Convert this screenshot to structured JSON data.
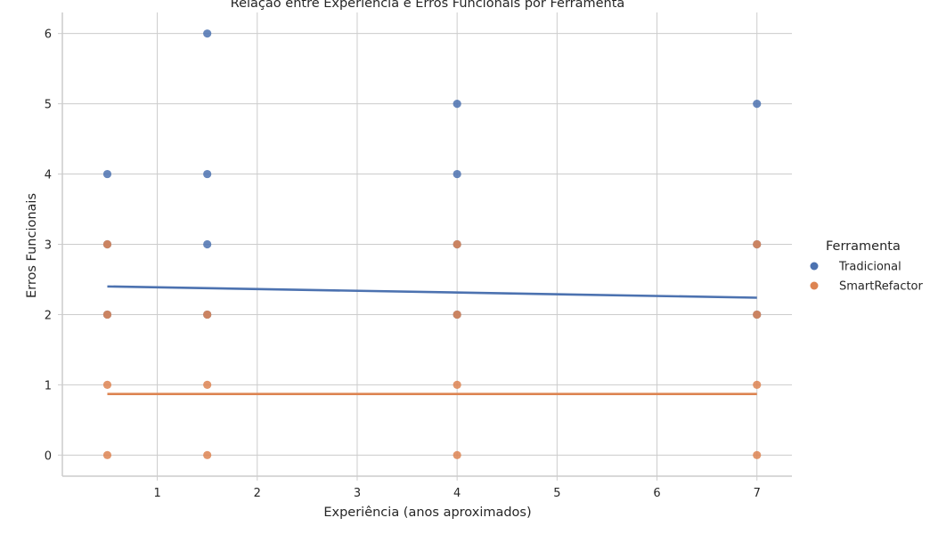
{
  "chart_data": {
    "type": "scatter",
    "title": "Relação entre Experiência e Erros Funcionais por Ferramenta",
    "xlabel": "Experiência (anos aproximados)",
    "ylabel": "Erros Funcionais",
    "xlim": [
      0.05,
      7.35
    ],
    "ylim": [
      -0.3,
      6.3
    ],
    "x_ticks": [
      1,
      2,
      3,
      4,
      5,
      6,
      7
    ],
    "y_ticks": [
      0,
      1,
      2,
      3,
      4,
      5,
      6
    ],
    "grid": true,
    "legend": {
      "title": "Ferramenta",
      "placement": "right"
    },
    "series": [
      {
        "name": "Tradicional",
        "color": "#4c72b0",
        "points": [
          [
            0.5,
            4
          ],
          [
            0.5,
            3
          ],
          [
            0.5,
            2
          ],
          [
            1.5,
            6
          ],
          [
            1.5,
            4
          ],
          [
            1.5,
            3
          ],
          [
            1.5,
            2
          ],
          [
            4,
            5
          ],
          [
            4,
            4
          ],
          [
            4,
            3
          ],
          [
            4,
            2
          ],
          [
            7,
            5
          ],
          [
            7,
            3
          ],
          [
            7,
            2
          ]
        ],
        "trend": [
          [
            0.5,
            2.4
          ],
          [
            7,
            2.24
          ]
        ]
      },
      {
        "name": "SmartRefactor",
        "color": "#dd8452",
        "points": [
          [
            0.5,
            3
          ],
          [
            0.5,
            2
          ],
          [
            0.5,
            1
          ],
          [
            0.5,
            0
          ],
          [
            1.5,
            2
          ],
          [
            1.5,
            1
          ],
          [
            1.5,
            0
          ],
          [
            4,
            3
          ],
          [
            4,
            2
          ],
          [
            4,
            1
          ],
          [
            4,
            0
          ],
          [
            7,
            3
          ],
          [
            7,
            2
          ],
          [
            7,
            1
          ],
          [
            7,
            0
          ]
        ],
        "trend": [
          [
            0.5,
            0.87
          ],
          [
            7,
            0.87
          ]
        ]
      }
    ]
  }
}
